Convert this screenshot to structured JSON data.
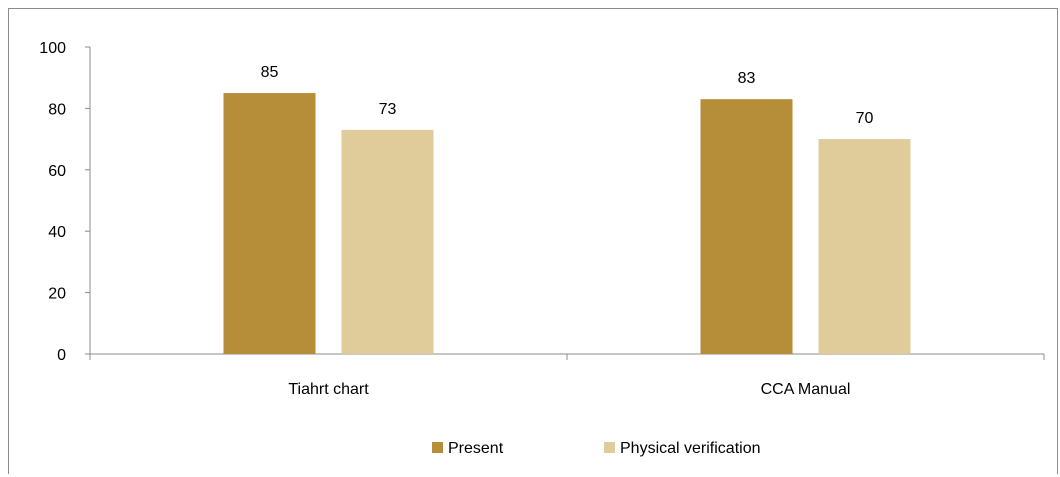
{
  "chart_data": {
    "type": "bar",
    "categories": [
      "Tiahrt chart",
      "CCA Manual"
    ],
    "series": [
      {
        "name": "Present",
        "values": [
          85,
          83
        ],
        "color": "#b68d39"
      },
      {
        "name": "Physical verification",
        "values": [
          73,
          70
        ],
        "color": "#e0cb9b"
      }
    ],
    "ylim": [
      0,
      100
    ],
    "yticks": [
      0,
      20,
      40,
      60,
      80,
      100
    ],
    "grid": false,
    "legend_position": "bottom",
    "data_labels": true
  }
}
